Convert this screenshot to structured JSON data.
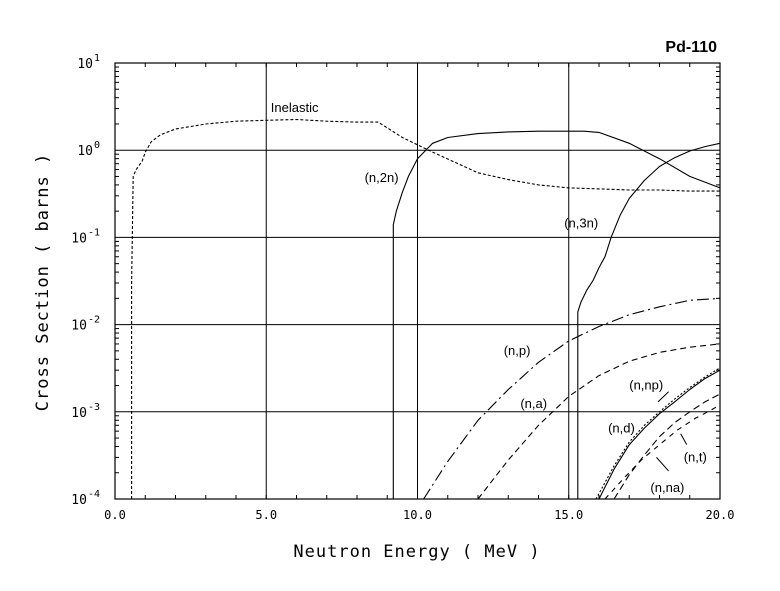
{
  "chart_data": {
    "type": "line",
    "title": "Pd-110",
    "xlabel": "Neutron Energy ( MeV )",
    "ylabel": "Cross Section ( barns )",
    "xlim": [
      0,
      20
    ],
    "ylim": [
      0.0001,
      10
    ],
    "yscale": "log",
    "grid": true,
    "xticks": [
      0,
      5,
      10,
      15,
      20
    ],
    "xtick_labels": [
      "0.0",
      "5.0",
      "10.0",
      "15.0",
      "20.0"
    ],
    "yticks": [
      {
        "value": 10,
        "base": "10",
        "exp": "1"
      },
      {
        "value": 1,
        "base": "10",
        "exp": "0"
      },
      {
        "value": 0.1,
        "base": "10",
        "exp": "-1"
      },
      {
        "value": 0.01,
        "base": "10",
        "exp": "-2"
      },
      {
        "value": 0.001,
        "base": "10",
        "exp": "-3"
      },
      {
        "value": 0.0001,
        "base": "10",
        "exp": "-4"
      }
    ],
    "series": [
      {
        "name": "Inelastic",
        "dash": "3,2",
        "x": [
          0.55,
          0.55,
          0.6,
          0.7,
          0.9,
          1.0,
          1.2,
          1.5,
          2,
          3,
          4,
          5,
          6,
          7,
          8,
          8.7,
          9.5,
          10.5,
          12,
          13,
          14,
          15,
          16,
          17,
          18,
          19,
          20
        ],
        "y": [
          0.0001,
          0.03,
          0.5,
          0.6,
          0.75,
          0.95,
          1.25,
          1.5,
          1.75,
          2.0,
          2.15,
          2.2,
          2.25,
          2.15,
          2.1,
          2.1,
          1.4,
          0.95,
          0.55,
          0.46,
          0.4,
          0.37,
          0.36,
          0.35,
          0.35,
          0.34,
          0.34
        ]
      },
      {
        "name": "(n,2n)",
        "dash": "",
        "x": [
          9.2,
          9.2,
          9.3,
          9.5,
          9.7,
          10,
          10.5,
          11,
          12,
          13,
          14,
          15,
          15.5,
          16,
          17,
          18,
          19,
          20
        ],
        "y": [
          0.0001,
          0.14,
          0.2,
          0.33,
          0.5,
          0.8,
          1.2,
          1.4,
          1.55,
          1.62,
          1.65,
          1.65,
          1.65,
          1.6,
          1.2,
          0.8,
          0.5,
          0.37
        ]
      },
      {
        "name": "(n,3n)",
        "dash": "",
        "x": [
          15.3,
          15.3,
          15.4,
          15.6,
          15.8,
          16,
          16.2,
          16.4,
          16.7,
          17,
          17.5,
          18,
          18.5,
          19,
          19.5,
          20
        ],
        "y": [
          0.0001,
          0.014,
          0.018,
          0.025,
          0.032,
          0.045,
          0.06,
          0.1,
          0.18,
          0.28,
          0.45,
          0.65,
          0.82,
          0.98,
          1.1,
          1.2
        ]
      },
      {
        "name": "(n,p)",
        "dash": "12,4,2,4",
        "x": [
          10.2,
          11,
          12,
          13,
          14,
          15,
          16,
          17,
          18,
          19,
          20
        ],
        "y": [
          0.0001,
          0.00027,
          0.0008,
          0.0018,
          0.0037,
          0.0065,
          0.0095,
          0.013,
          0.016,
          0.019,
          0.02
        ]
      },
      {
        "name": "(n,a)",
        "dash": "6,4",
        "x": [
          12,
          13,
          14,
          15,
          16,
          17,
          18,
          19,
          20
        ],
        "y": [
          0.0001,
          0.00028,
          0.0007,
          0.0015,
          0.0026,
          0.0038,
          0.0048,
          0.0055,
          0.006
        ]
      },
      {
        "name": "(n,np)",
        "dash": "2,2",
        "x": [
          15.9,
          16.5,
          17,
          17.5,
          18,
          18.5,
          19,
          19.5,
          20
        ],
        "y": [
          0.0001,
          0.00024,
          0.00045,
          0.0007,
          0.001,
          0.0014,
          0.0019,
          0.0025,
          0.0032
        ]
      },
      {
        "name": "(n,d)",
        "dash": "",
        "x": [
          16,
          16.5,
          17,
          17.5,
          18,
          18.5,
          19,
          19.5,
          20
        ],
        "y": [
          0.0001,
          0.00022,
          0.00042,
          0.00065,
          0.00095,
          0.0013,
          0.0018,
          0.0024,
          0.003
        ]
      },
      {
        "name": "(n,t)",
        "dash": "7,4",
        "x": [
          16.5,
          17,
          17.5,
          18,
          18.5,
          19,
          19.5,
          20
        ],
        "y": [
          0.0001,
          0.00019,
          0.00032,
          0.00052,
          0.00075,
          0.001,
          0.0013,
          0.0016
        ]
      },
      {
        "name": "(n,na)",
        "dash": "5,5",
        "x": [
          16.2,
          16.8,
          17.4,
          18,
          18.6,
          19.2,
          19.6,
          20
        ],
        "y": [
          0.0001,
          0.00017,
          0.00028,
          0.00042,
          0.00062,
          0.00085,
          0.001,
          0.0012
        ]
      }
    ],
    "annotations": [
      {
        "text": "Inelastic",
        "x": 5.15,
        "y": 2.75,
        "anchor": "start"
      },
      {
        "text": "(n,2n)",
        "x": 8.25,
        "y": 0.43,
        "anchor": "start"
      },
      {
        "text": "(n,3n)",
        "x": 14.85,
        "y": 0.13,
        "anchor": "start"
      },
      {
        "text": "(n,p)",
        "x": 12.85,
        "y": 0.0045,
        "anchor": "start"
      },
      {
        "text": "(n,a)",
        "x": 13.4,
        "y": 0.0011,
        "anchor": "start"
      },
      {
        "text": "(n,np)",
        "x": 17.0,
        "y": 0.0018,
        "anchor": "start"
      },
      {
        "text": "(n,d)",
        "x": 16.3,
        "y": 0.00058,
        "anchor": "start"
      },
      {
        "text": "(n,t)",
        "x": 18.8,
        "y": 0.00027,
        "anchor": "start"
      },
      {
        "text": "(n,na)",
        "x": 17.7,
        "y": 0.00012,
        "anchor": "start"
      }
    ],
    "leaders": [
      {
        "series": "(n,np)",
        "from": [
          17.95,
          0.0013
        ],
        "to": [
          18.3,
          0.0017
        ]
      },
      {
        "series": "(n,t)",
        "from": [
          18.9,
          0.00042
        ],
        "to": [
          18.7,
          0.00056
        ]
      },
      {
        "series": "(n,na)",
        "from": [
          18.3,
          0.00021
        ],
        "to": [
          17.9,
          0.0003
        ]
      }
    ]
  }
}
